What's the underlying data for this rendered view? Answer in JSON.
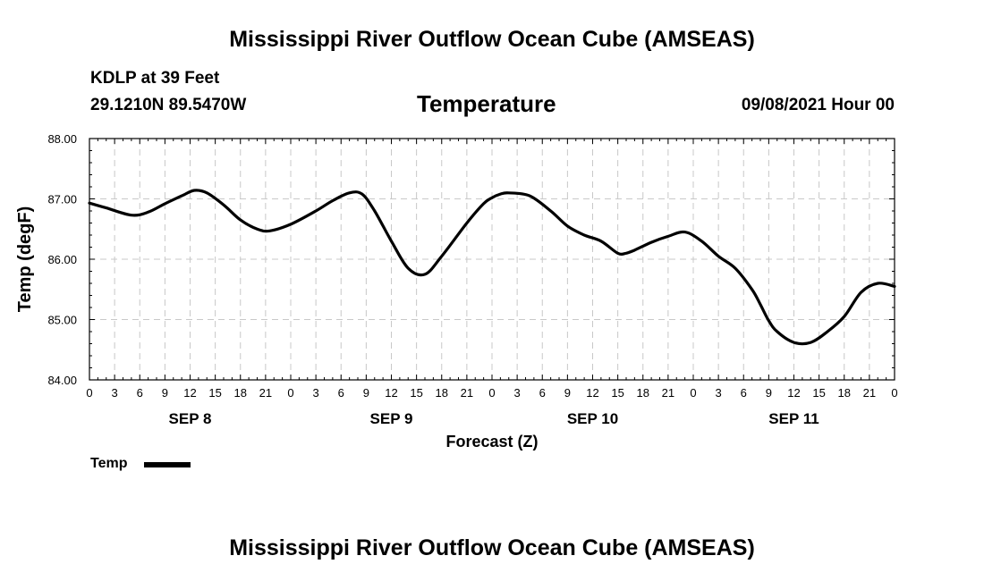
{
  "header": {
    "main_title": "Mississippi River Outflow Ocean Cube (AMSEAS)",
    "station": "KDLP at 39 Feet",
    "coords": "29.1210N  89.5470W",
    "chart_title": "Temperature",
    "datetime": "09/08/2021 Hour 00"
  },
  "footer": {
    "title": "Mississippi River Outflow Ocean Cube (AMSEAS)"
  },
  "legend": {
    "label": "Temp"
  },
  "chart_data": {
    "type": "line",
    "title": "Temperature",
    "xlabel": "Forecast (Z)",
    "ylabel": "Temp (degF)",
    "ylim": [
      84.0,
      88.0
    ],
    "xlim": [
      0,
      96
    ],
    "grid": true,
    "legend_position": "bottom-left",
    "y_ticks": [
      "84.00",
      "85.00",
      "86.00",
      "87.00",
      "88.00"
    ],
    "x_tick_labels": [
      "0",
      "3",
      "6",
      "9",
      "12",
      "15",
      "18",
      "21",
      "0",
      "3",
      "6",
      "9",
      "12",
      "15",
      "18",
      "21",
      "0",
      "3",
      "6",
      "9",
      "12",
      "15",
      "18",
      "21",
      "0",
      "3",
      "6",
      "9",
      "12",
      "15",
      "18",
      "21",
      "0"
    ],
    "day_labels": [
      {
        "label": "SEP 8",
        "hour": 12
      },
      {
        "label": "SEP 9",
        "hour": 36
      },
      {
        "label": "SEP 10",
        "hour": 60
      },
      {
        "label": "SEP 11",
        "hour": 84
      }
    ],
    "series": [
      {
        "name": "Temp",
        "color": "#000000",
        "x": [
          0,
          2,
          5,
          7,
          9,
          11,
          12.5,
          14,
          16,
          18,
          20,
          21.5,
          24,
          27,
          29,
          31,
          32.5,
          34,
          36,
          38,
          40,
          42,
          45,
          47,
          48,
          49,
          50,
          52.5,
          55,
          57,
          59,
          61,
          63,
          64,
          65,
          67,
          69,
          71,
          73,
          75,
          77,
          79,
          80,
          81,
          82,
          84,
          86,
          88,
          90,
          92,
          94,
          96
        ],
        "values": [
          86.93,
          86.85,
          86.73,
          86.78,
          86.92,
          87.05,
          87.14,
          87.1,
          86.9,
          86.65,
          86.5,
          86.47,
          86.58,
          86.8,
          86.97,
          87.1,
          87.08,
          86.8,
          86.3,
          85.85,
          85.75,
          86.05,
          86.6,
          86.92,
          87.02,
          87.08,
          87.1,
          87.05,
          86.8,
          86.55,
          86.4,
          86.3,
          86.1,
          86.1,
          86.15,
          86.28,
          86.38,
          86.45,
          86.3,
          86.05,
          85.85,
          85.5,
          85.25,
          84.98,
          84.8,
          84.62,
          84.62,
          84.8,
          85.05,
          85.45,
          85.6,
          85.55
        ]
      }
    ]
  }
}
